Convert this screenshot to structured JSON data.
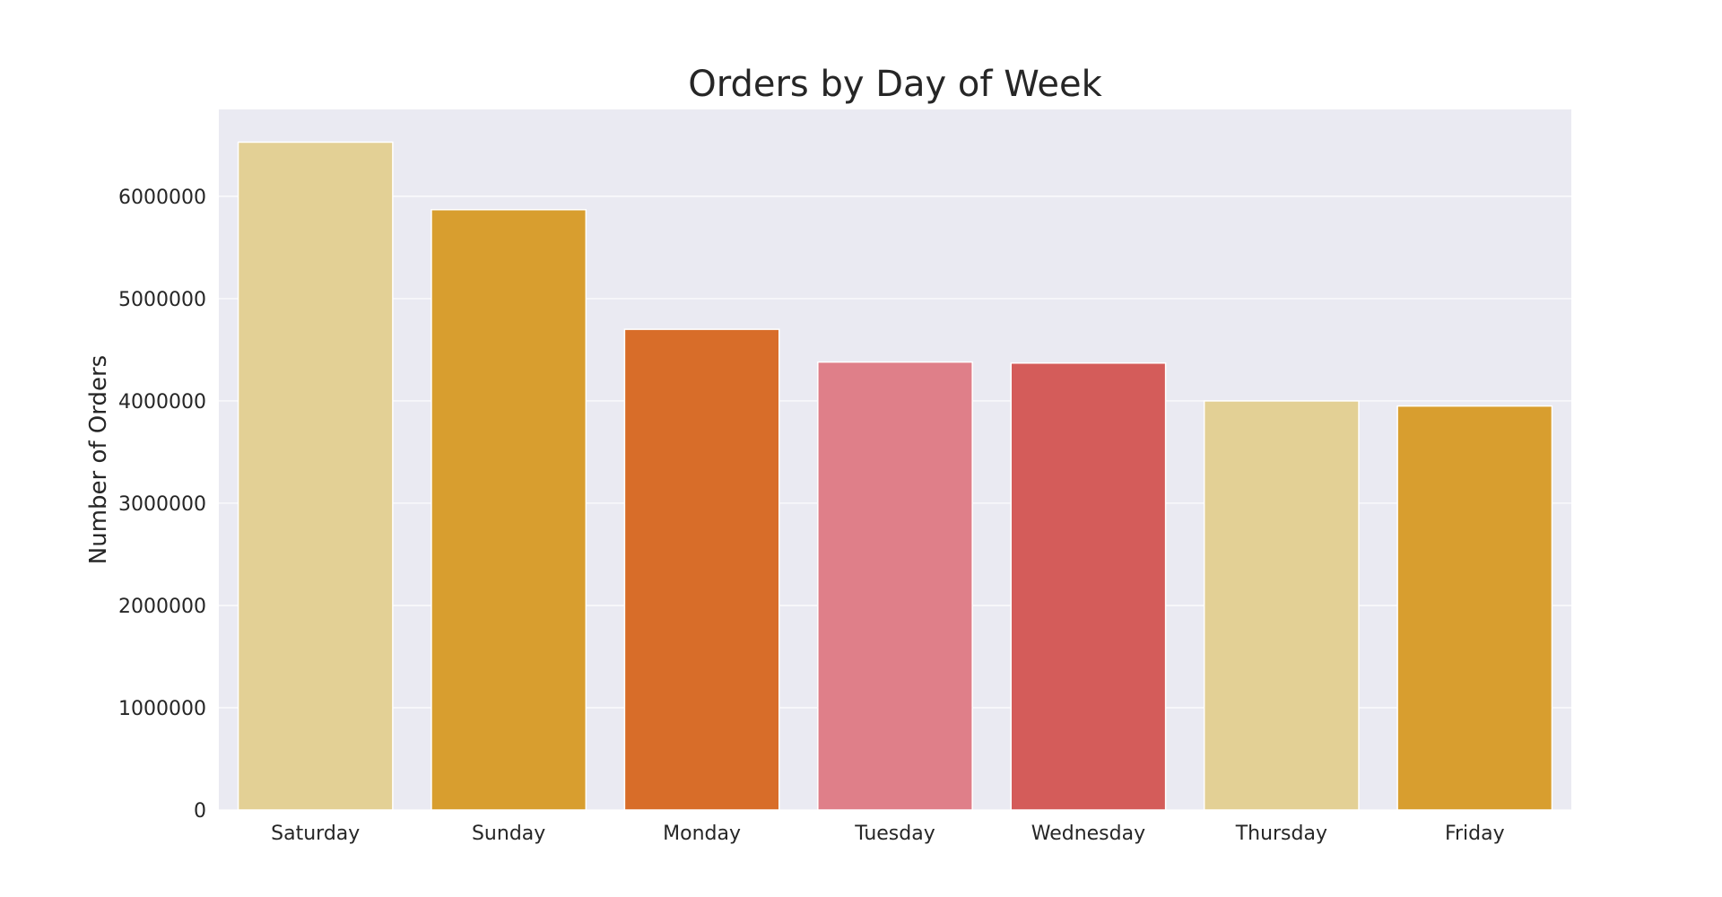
{
  "chart_data": {
    "type": "bar",
    "title": "Orders by Day of Week",
    "xlabel": "",
    "ylabel": "Number of Orders",
    "categories": [
      "Saturday",
      "Sunday",
      "Monday",
      "Tuesday",
      "Wednesday",
      "Thursday",
      "Friday"
    ],
    "values": [
      6530000,
      5870000,
      4700000,
      4380000,
      4370000,
      4000000,
      3950000
    ],
    "colors": [
      "#E3D095",
      "#D89E2F",
      "#D86D29",
      "#DF7F89",
      "#D45C5A",
      "#E3D095",
      "#D89E2F"
    ],
    "ylim": [
      0,
      6850000
    ],
    "yticks": [
      0,
      1000000,
      2000000,
      3000000,
      4000000,
      5000000,
      6000000
    ],
    "ytick_labels": [
      "0",
      "1000000",
      "2000000",
      "3000000",
      "4000000",
      "5000000",
      "6000000"
    ],
    "grid": true,
    "background": "#EAEAF2",
    "gridline_color": "#FFFFFF"
  }
}
